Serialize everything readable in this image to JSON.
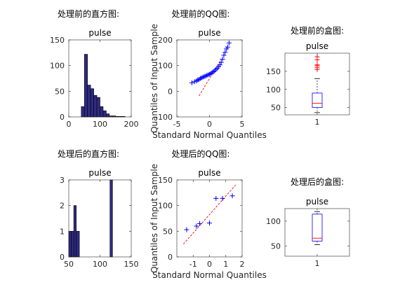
{
  "colors": {
    "bar_fill": "#2e2b82",
    "bar_edge": "#000000",
    "marker": "#0000ff",
    "ref_line": "#ff0000",
    "outlier": "#ff0000",
    "box": "#0000ff",
    "median": "#ff0000",
    "whisker": "#000000"
  },
  "chart_data": [
    {
      "type": "bar",
      "panel": "hist-before",
      "heading": "处理前的直方图:",
      "title": "pulse",
      "bins": [
        {
          "from": 40,
          "to": 50,
          "count": 20
        },
        {
          "from": 50,
          "to": 60,
          "count": 122
        },
        {
          "from": 60,
          "to": 70,
          "count": 62
        },
        {
          "from": 70,
          "to": 80,
          "count": 55
        },
        {
          "from": 80,
          "to": 90,
          "count": 42
        },
        {
          "from": 90,
          "to": 100,
          "count": 38
        },
        {
          "from": 100,
          "to": 110,
          "count": 20
        },
        {
          "from": 110,
          "to": 120,
          "count": 12
        },
        {
          "from": 120,
          "to": 130,
          "count": 6
        },
        {
          "from": 130,
          "to": 140,
          "count": 2
        },
        {
          "from": 140,
          "to": 150,
          "count": 2
        },
        {
          "from": 150,
          "to": 160,
          "count": 1
        },
        {
          "from": 160,
          "to": 170,
          "count": 1
        },
        {
          "from": 170,
          "to": 180,
          "count": 1
        }
      ],
      "xlim": [
        0,
        200
      ],
      "ylim": [
        0,
        150
      ],
      "xticks": [
        0,
        100,
        200
      ],
      "yticks": [
        0,
        50,
        100,
        150
      ]
    },
    {
      "type": "scatter",
      "panel": "qq-before",
      "heading": "处理前的QQ图:",
      "title": "pulse",
      "xlabel": "Standard Normal Quantiles",
      "ylabel": "Quantiles of Input Sample",
      "xlim": [
        -5,
        5
      ],
      "ylim": [
        -100,
        200
      ],
      "xticks": [
        -5,
        0,
        5
      ],
      "yticks": [
        -100,
        0,
        100,
        200
      ],
      "points": [
        [
          -2.7,
          33
        ],
        [
          -2.3,
          37
        ],
        [
          -2.0,
          40
        ],
        [
          -1.8,
          44
        ],
        [
          -1.6,
          46
        ],
        [
          -1.4,
          50
        ],
        [
          -1.2,
          52
        ],
        [
          -1.0,
          55
        ],
        [
          -0.8,
          57
        ],
        [
          -0.6,
          59
        ],
        [
          -0.4,
          62
        ],
        [
          -0.2,
          64
        ],
        [
          0.0,
          66
        ],
        [
          0.2,
          69
        ],
        [
          0.4,
          72
        ],
        [
          0.6,
          76
        ],
        [
          0.8,
          80
        ],
        [
          1.0,
          85
        ],
        [
          1.2,
          90
        ],
        [
          1.4,
          96
        ],
        [
          1.6,
          103
        ],
        [
          1.8,
          112
        ],
        [
          2.0,
          125
        ],
        [
          2.2,
          140
        ],
        [
          2.4,
          152
        ],
        [
          2.6,
          165
        ],
        [
          2.8,
          172
        ],
        [
          3.0,
          188
        ]
      ],
      "ref_line": [
        [
          -1.6,
          -18
        ],
        [
          1.8,
          125
        ]
      ]
    },
    {
      "type": "box",
      "panel": "box-before",
      "heading": "处理前的盒图:",
      "title": "pulse",
      "ylim": [
        30,
        200
      ],
      "yticks": [
        50,
        100,
        150
      ],
      "categories": [
        "1"
      ],
      "box": {
        "whisker_low": 36,
        "q1": 50,
        "median": 62,
        "q3": 90,
        "whisker_high": 130
      },
      "outliers": [
        155,
        160,
        165,
        168,
        182,
        190
      ]
    },
    {
      "type": "bar",
      "panel": "hist-after",
      "heading": "处理后的直方图:",
      "title": "pulse",
      "bins": [
        {
          "from": 50,
          "to": 54,
          "count": 1
        },
        {
          "from": 54,
          "to": 58,
          "count": 1
        },
        {
          "from": 58,
          "to": 62,
          "count": 2
        },
        {
          "from": 62,
          "to": 67,
          "count": 1
        },
        {
          "from": 116,
          "to": 120,
          "count": 3
        }
      ],
      "xlim": [
        50,
        150
      ],
      "ylim": [
        0,
        3
      ],
      "xticks": [
        50,
        100,
        150
      ],
      "yticks": [
        0,
        1,
        2,
        3
      ]
    },
    {
      "type": "scatter",
      "panel": "qq-after",
      "heading": "处理后的QQ图:",
      "title": "pulse",
      "xlabel": "Standard Normal Quantiles",
      "ylabel": "Quantiles of Input Sample",
      "xlim": [
        -2,
        2
      ],
      "ylim": [
        0,
        150
      ],
      "xticks": [
        -1,
        0,
        1,
        2
      ],
      "yticks": [
        0,
        50,
        100,
        150
      ],
      "points": [
        [
          -1.4,
          53
        ],
        [
          -0.8,
          60
        ],
        [
          -0.6,
          65
        ],
        [
          0.0,
          66
        ],
        [
          0.4,
          114
        ],
        [
          0.8,
          114
        ],
        [
          1.4,
          119
        ]
      ],
      "ref_line": [
        [
          -1.6,
          25
        ],
        [
          1.6,
          140
        ]
      ]
    },
    {
      "type": "box",
      "panel": "box-after",
      "heading": "处理后的盒图:",
      "title": "pulse",
      "ylim": [
        30,
        125
      ],
      "yticks": [
        50,
        100
      ],
      "categories": [
        "1"
      ],
      "box": {
        "whisker_low": 53,
        "q1": 60,
        "median": 66,
        "q3": 114,
        "whisker_high": 119
      },
      "outliers": []
    }
  ]
}
